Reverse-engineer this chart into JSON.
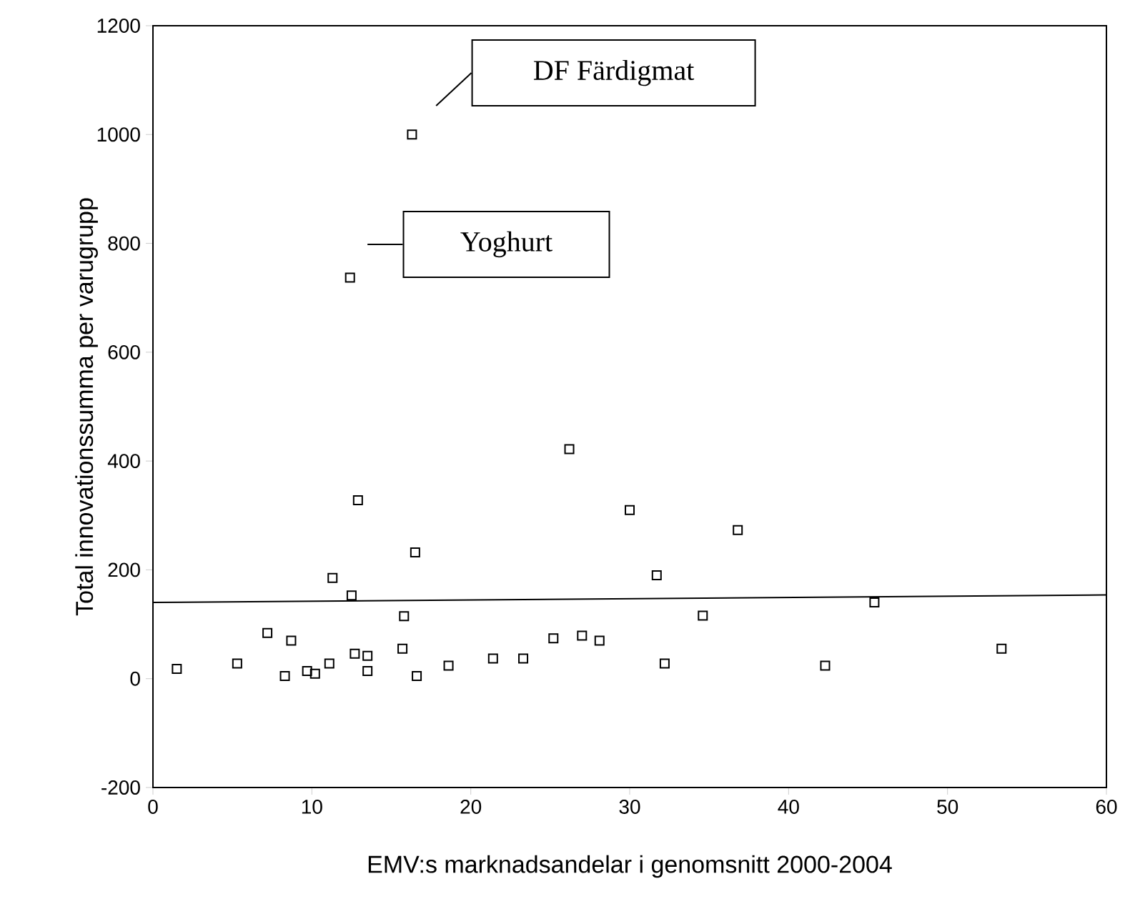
{
  "chart_data": {
    "type": "scatter",
    "xlabel": "EMV:s marknadsandelar i genomsnitt 2000-2004",
    "ylabel": "Total innovationssumma per varugrupp",
    "xlim": [
      0,
      60
    ],
    "ylim": [
      -200,
      1200
    ],
    "xticks": [
      0,
      10,
      20,
      30,
      40,
      50,
      60
    ],
    "yticks": [
      -200,
      0,
      200,
      400,
      600,
      800,
      1000,
      1200
    ],
    "grid": false,
    "marker": "square",
    "series": [
      {
        "color": "#000000",
        "x": [
          1.5,
          5.3,
          7.2,
          8.7,
          8.3,
          9.7,
          10.2,
          11.1,
          11.3,
          12.5,
          12.7,
          12.9,
          13.5,
          13.5,
          15.8,
          15.7,
          16.5,
          16.6,
          18.6,
          21.4,
          23.3,
          25.2,
          26.2,
          27.0,
          28.1,
          30.0,
          36.8,
          31.7,
          34.6,
          32.2,
          42.3,
          45.4,
          53.4,
          16.3,
          12.4
        ],
        "values": [
          18,
          28,
          84,
          70,
          5,
          14,
          9,
          28,
          185,
          153,
          46,
          328,
          42,
          14,
          115,
          55,
          232,
          5,
          24,
          37,
          37,
          74,
          422,
          79,
          70,
          310,
          273,
          190,
          116,
          28,
          24,
          140,
          55,
          1000,
          737
        ]
      },
      {
        "type": "line",
        "marker": "none",
        "color": "#000000",
        "x": [
          0,
          60
        ],
        "values": [
          140,
          154
        ]
      }
    ],
    "annotations": [
      "DF Färdigmat",
      "Yoghurt"
    ]
  }
}
